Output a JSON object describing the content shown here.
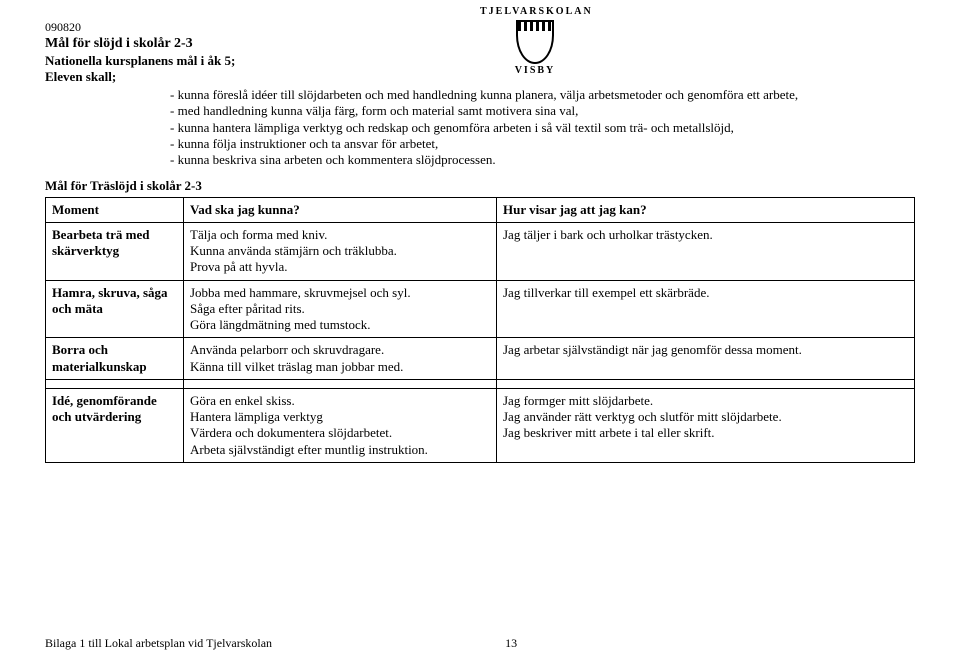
{
  "logo": {
    "top_text": "TJELVARSKOLAN",
    "bottom_text": "VISBY"
  },
  "date": "090820",
  "title": "Mål för slöjd i skolår 2-3",
  "subtitle1": "Nationella kursplanens mål i åk 5;",
  "subtitle2": "Eleven skall;",
  "intro_items": [
    "kunna föreslå idéer till slöjdarbeten och med handledning kunna planera, välja arbetsmetoder och genomföra ett arbete,",
    "med handledning kunna välja färg, form och material samt motivera sina val,",
    "kunna hantera lämpliga verktyg och redskap och genomföra arbeten i så väl textil som trä- och metallslöjd,",
    "kunna följa instruktioner och ta ansvar för arbetet,",
    "kunna beskriva sina arbeten och kommentera slöjdprocessen."
  ],
  "subhead": "Mål för Träslöjd i skolår 2-3",
  "columns": {
    "moment": "Moment",
    "kunna": "Vad ska jag kunna?",
    "visar": "Hur visar jag att jag kan?"
  },
  "rows": [
    {
      "moment": "Bearbeta trä med skärverktyg",
      "kunna": "Tälja och forma med kniv.\nKunna använda stämjärn och träklubba.\nProva på att hyvla.",
      "visar": "Jag täljer i bark och urholkar trästycken."
    },
    {
      "moment": "Hamra, skruva, såga och mäta",
      "kunna": "Jobba med hammare, skruvmejsel och syl.\nSåga efter påritad rits.\nGöra längdmätning med tumstock.",
      "visar": "Jag tillverkar till exempel ett skärbräde."
    },
    {
      "moment": "Borra och materialkunskap",
      "kunna": "Använda pelarborr och skruvdragare.\nKänna till vilket träslag man jobbar med.",
      "visar": "Jag arbetar självständigt när jag genomför dessa moment."
    }
  ],
  "rows2": [
    {
      "moment": "Idé, genomförande och utvärdering",
      "kunna": "Göra en enkel skiss.\nHantera lämpliga verktyg\nVärdera och dokumentera slöjdarbetet.\nArbeta självständigt efter muntlig instruktion.",
      "visar": "Jag formger mitt slöjdarbete.\nJag använder rätt verktyg och slutför mitt slöjdarbete.\nJag beskriver mitt arbete i tal eller skrift."
    }
  ],
  "footer": {
    "text": "Bilaga 1 till Lokal arbetsplan vid Tjelvarskolan",
    "page": "13"
  }
}
